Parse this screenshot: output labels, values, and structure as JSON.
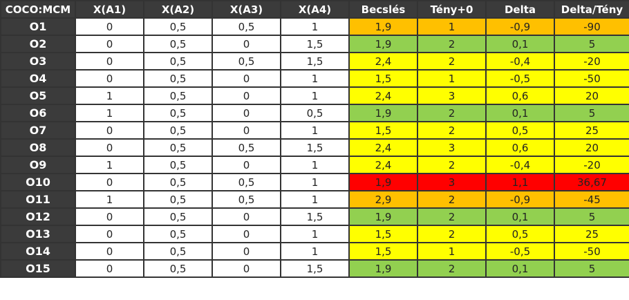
{
  "table": {
    "headers": [
      "COCO:MCM",
      "X(A1)",
      "X(A2)",
      "X(A3)",
      "X(A4)",
      "Becslés",
      "Tény+0",
      "Delta",
      "Delta/Tény"
    ],
    "colors": {
      "green": "#92d050",
      "yellow": "#ffff00",
      "orange": "#ffc000",
      "red": "#ff0000",
      "header_bg": "#3b3b3b"
    },
    "rows": [
      {
        "id": "O1",
        "x": [
          "0",
          "0,5",
          "0,5",
          "1"
        ],
        "est": [
          "1,9",
          "1",
          "-0,9",
          "-90"
        ],
        "color": "orange"
      },
      {
        "id": "O2",
        "x": [
          "0",
          "0,5",
          "0",
          "1,5"
        ],
        "est": [
          "1,9",
          "2",
          "0,1",
          "5"
        ],
        "color": "green"
      },
      {
        "id": "O3",
        "x": [
          "0",
          "0,5",
          "0,5",
          "1,5"
        ],
        "est": [
          "2,4",
          "2",
          "-0,4",
          "-20"
        ],
        "color": "yellow"
      },
      {
        "id": "O4",
        "x": [
          "0",
          "0,5",
          "0",
          "1"
        ],
        "est": [
          "1,5",
          "1",
          "-0,5",
          "-50"
        ],
        "color": "yellow"
      },
      {
        "id": "O5",
        "x": [
          "1",
          "0,5",
          "0",
          "1"
        ],
        "est": [
          "2,4",
          "3",
          "0,6",
          "20"
        ],
        "color": "yellow"
      },
      {
        "id": "O6",
        "x": [
          "1",
          "0,5",
          "0",
          "0,5"
        ],
        "est": [
          "1,9",
          "2",
          "0,1",
          "5"
        ],
        "color": "green"
      },
      {
        "id": "O7",
        "x": [
          "0",
          "0,5",
          "0",
          "1"
        ],
        "est": [
          "1,5",
          "2",
          "0,5",
          "25"
        ],
        "color": "yellow"
      },
      {
        "id": "O8",
        "x": [
          "0",
          "0,5",
          "0,5",
          "1,5"
        ],
        "est": [
          "2,4",
          "3",
          "0,6",
          "20"
        ],
        "color": "yellow"
      },
      {
        "id": "O9",
        "x": [
          "1",
          "0,5",
          "0",
          "1"
        ],
        "est": [
          "2,4",
          "2",
          "-0,4",
          "-20"
        ],
        "color": "yellow"
      },
      {
        "id": "O10",
        "x": [
          "0",
          "0,5",
          "0,5",
          "1"
        ],
        "est": [
          "1,9",
          "3",
          "1,1",
          "36,67"
        ],
        "color": "red"
      },
      {
        "id": "O11",
        "x": [
          "1",
          "0,5",
          "0,5",
          "1"
        ],
        "est": [
          "2,9",
          "2",
          "-0,9",
          "-45"
        ],
        "color": "orange"
      },
      {
        "id": "O12",
        "x": [
          "0",
          "0,5",
          "0",
          "1,5"
        ],
        "est": [
          "1,9",
          "2",
          "0,1",
          "5"
        ],
        "color": "green"
      },
      {
        "id": "O13",
        "x": [
          "0",
          "0,5",
          "0",
          "1"
        ],
        "est": [
          "1,5",
          "2",
          "0,5",
          "25"
        ],
        "color": "yellow"
      },
      {
        "id": "O14",
        "x": [
          "0",
          "0,5",
          "0",
          "1"
        ],
        "est": [
          "1,5",
          "1",
          "-0,5",
          "-50"
        ],
        "color": "yellow"
      },
      {
        "id": "O15",
        "x": [
          "0",
          "0,5",
          "0",
          "1,5"
        ],
        "est": [
          "1,9",
          "2",
          "0,1",
          "5"
        ],
        "color": "green"
      }
    ]
  }
}
